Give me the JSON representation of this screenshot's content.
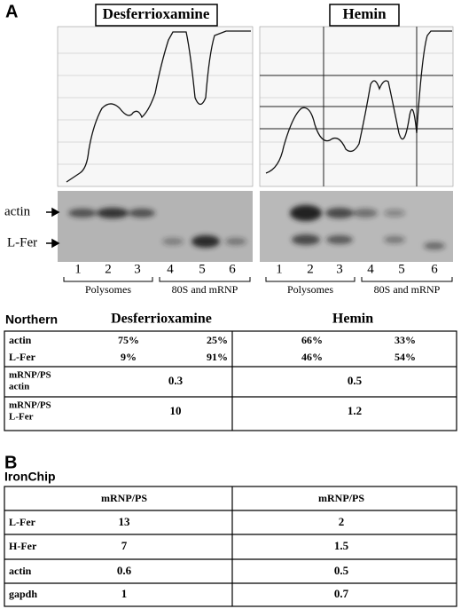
{
  "panel_a": {
    "label": "A",
    "conditions": [
      "Desferrioxamine",
      "Hemin"
    ],
    "blot_labels": [
      "actin",
      "L-Fer"
    ],
    "lanes": [
      "1",
      "2",
      "3",
      "4",
      "5",
      "6"
    ],
    "fractions": [
      "Polysomes",
      "80S and mRNP"
    ]
  },
  "northern": {
    "title": "Northern",
    "columns": [
      "Desferrioxamine",
      "Hemin"
    ],
    "percent_rows": [
      {
        "label": "actin",
        "values": [
          "75%",
          "25%",
          "66%",
          "33%"
        ]
      },
      {
        "label": "L-Fer",
        "values": [
          "9%",
          "91%",
          "46%",
          "54%"
        ]
      }
    ],
    "ratio_rows": [
      {
        "label": [
          "mRNP/PS",
          "actin"
        ],
        "values": [
          "0.3",
          "0.5"
        ]
      },
      {
        "label": [
          "mRNP/PS",
          "L-Fer"
        ],
        "values": [
          "10",
          "1.2"
        ]
      }
    ]
  },
  "panel_b": {
    "label": "B",
    "title": "IronChip",
    "header": [
      "mRNP/PS",
      "mRNP/PS"
    ],
    "rows": [
      {
        "label": "L-Fer",
        "values": [
          "13",
          "2"
        ]
      },
      {
        "label": "H-Fer",
        "values": [
          "7",
          "1.5"
        ]
      },
      {
        "label": "actin",
        "values": [
          "0.6",
          "0.5"
        ]
      },
      {
        "label": "gapdh",
        "values": [
          "1",
          "0.7"
        ]
      }
    ]
  }
}
